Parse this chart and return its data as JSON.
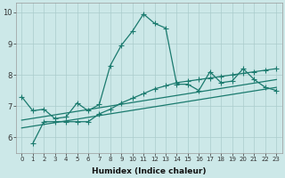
{
  "xlabel": "Humidex (Indice chaleur)",
  "xlim": [
    -0.5,
    23.5
  ],
  "ylim": [
    5.5,
    10.3
  ],
  "yticks": [
    6,
    7,
    8,
    9,
    10
  ],
  "xticks": [
    0,
    1,
    2,
    3,
    4,
    5,
    6,
    7,
    8,
    9,
    10,
    11,
    12,
    13,
    14,
    15,
    16,
    17,
    18,
    19,
    20,
    21,
    22,
    23
  ],
  "bg_color": "#cce8e8",
  "grid_color": "#aacccc",
  "line_color": "#1a7a6e",
  "line1_x": [
    0,
    1,
    2,
    3,
    4,
    5,
    6,
    7,
    8,
    9,
    10,
    11,
    12,
    13,
    14,
    15,
    16,
    17,
    18,
    19,
    20,
    21,
    22,
    23
  ],
  "line1_y": [
    7.3,
    6.85,
    6.9,
    6.6,
    6.65,
    7.1,
    6.85,
    7.05,
    8.3,
    8.95,
    9.4,
    9.95,
    9.65,
    9.5,
    7.7,
    7.7,
    7.5,
    8.1,
    7.75,
    7.8,
    8.2,
    7.85,
    7.6,
    7.5
  ],
  "line2_x": [
    1,
    2,
    3,
    4,
    5,
    6,
    7,
    8,
    9,
    10,
    11,
    12,
    13,
    14,
    15,
    16,
    17,
    18,
    19,
    20,
    21,
    22,
    23
  ],
  "line2_y": [
    5.8,
    6.5,
    6.5,
    6.5,
    6.5,
    6.5,
    6.75,
    6.9,
    7.1,
    7.25,
    7.4,
    7.55,
    7.65,
    7.75,
    7.8,
    7.85,
    7.9,
    7.95,
    8.0,
    8.05,
    8.1,
    8.15,
    8.2
  ],
  "line3_x": [
    0,
    23
  ],
  "line3_y": [
    6.3,
    7.6
  ],
  "line4_x": [
    0,
    23
  ],
  "line4_y": [
    6.55,
    7.85
  ],
  "marker_size": 4,
  "line_width": 0.9
}
